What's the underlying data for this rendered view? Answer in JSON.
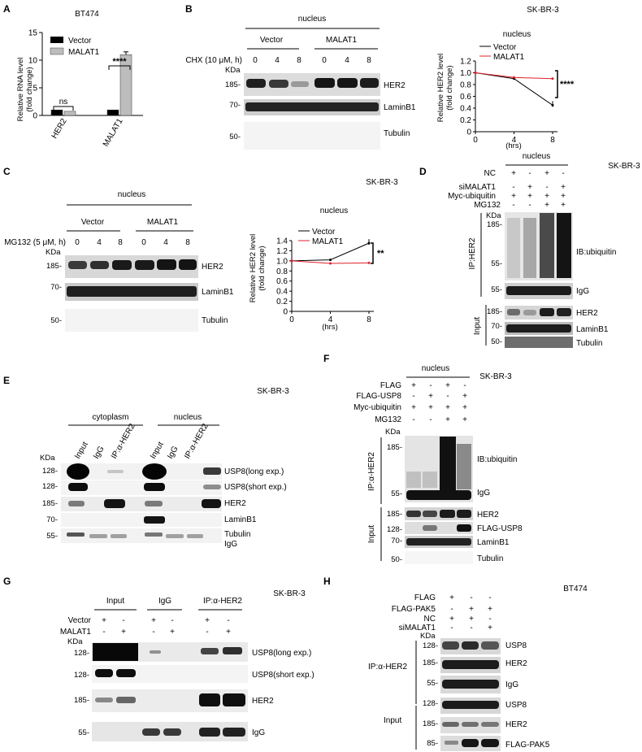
{
  "panels": {
    "A": {
      "letter": "A",
      "cell": "BT474",
      "ylabel1": "Relative RNA level",
      "ylabel2": "(fold change)",
      "legend": [
        "Vector",
        "MALAT1"
      ],
      "sig_ns": "ns",
      "sig_star": "****",
      "xticks": [
        "HER2",
        "MALAT1"
      ]
    },
    "B": {
      "letter": "B",
      "nucleus": "nucleus",
      "vector": "Vector",
      "malat1": "MALAT1",
      "treat": "CHX (10 μM, h)",
      "times": [
        "0",
        "4",
        "8",
        "0",
        "4",
        "8"
      ],
      "kda": "KDa",
      "markers": [
        "185-",
        "70-",
        "50-"
      ],
      "bands": [
        "HER2",
        "LaminB1",
        "Tubulin"
      ],
      "cell": "SK-BR-3",
      "plot_title": "nucleus",
      "ylabel1": "Relative HER2 level",
      "ylabel2": "(fold change)",
      "xlabel": "(hrs)",
      "legend": [
        "Vector",
        "MALAT1"
      ],
      "sig": "****"
    },
    "C": {
      "letter": "C",
      "cell": "SK-BR-3",
      "nucleus": "nucleus",
      "vector": "Vector",
      "malat1": "MALAT1",
      "treat": "MG132 (5 μM, h)",
      "times": [
        "0",
        "4",
        "8",
        "0",
        "4",
        "8"
      ],
      "kda": "KDa",
      "markers": [
        "185-",
        "70-",
        "50-"
      ],
      "bands": [
        "HER2",
        "LaminB1",
        "Tubulin"
      ],
      "plot_title": "nucleus",
      "ylabel1": "Relative HER2 level",
      "ylabel2": "(fold change)",
      "xlabel": "(hrs)",
      "legend": [
        "Vector",
        "MALAT1"
      ],
      "sig": "**"
    },
    "D": {
      "letter": "D",
      "cell": "SK-BR-3",
      "nucleus": "nucleus",
      "rows": [
        {
          "label": "NC",
          "signs": [
            "+",
            "-",
            "+",
            "-"
          ]
        },
        {
          "label": "siMALAT1",
          "signs": [
            "-",
            "+",
            "-",
            "+"
          ]
        },
        {
          "label": "Myc-ubiquitin",
          "signs": [
            "+",
            "+",
            "+",
            "+"
          ]
        },
        {
          "label": "MG132",
          "signs": [
            "-",
            "-",
            "+",
            "+"
          ]
        }
      ],
      "kda": "KDa",
      "ip": "IP:HER2",
      "input": "Input",
      "ib": "IB:ubiquitin",
      "markers_ip": [
        "185-",
        "55-",
        "55-"
      ],
      "markers_in": [
        "185-",
        "70-",
        "50-"
      ],
      "bands": [
        "IgG",
        "HER2",
        "LaminB1",
        "Tubulin"
      ]
    },
    "E": {
      "letter": "E",
      "cell": "SK-BR-3",
      "cytoplasm": "cytoplasm",
      "nucleus": "nucleus",
      "lanes": [
        "Input",
        "IgG",
        "IP:α-HER2",
        "Input",
        "IgG",
        "IP:α-HER2"
      ],
      "kda": "KDa",
      "markers": [
        "128-",
        "128-",
        "185-",
        "70-",
        "55-"
      ],
      "bands": [
        "USP8(long exp.)",
        "USP8(short exp.)",
        "HER2",
        "LaminB1",
        "Tubulin",
        "IgG"
      ]
    },
    "F": {
      "letter": "F",
      "cell": "SK-BR-3",
      "nucleus": "nucleus",
      "rows": [
        {
          "label": "FLAG",
          "signs": [
            "+",
            "-",
            "+",
            "-"
          ]
        },
        {
          "label": "FLAG-USP8",
          "signs": [
            "-",
            "+",
            "-",
            "+"
          ]
        },
        {
          "label": "Myc-ubiquitin",
          "signs": [
            "+",
            "+",
            "+",
            "+"
          ]
        },
        {
          "label": "MG132",
          "signs": [
            "-",
            "-",
            "+",
            "+"
          ]
        }
      ],
      "kda": "KDa",
      "ip": "IP:α-HER2",
      "input": "Input",
      "ib": "IB:ubiquitin",
      "markers_ip": [
        "185-",
        "55-"
      ],
      "markers_in": [
        "185-",
        "128-",
        "70-",
        "50-"
      ],
      "bands": [
        "IgG",
        "HER2",
        "FLAG-USP8",
        "LaminB1",
        "Tubulin"
      ]
    },
    "G": {
      "letter": "G",
      "cell": "SK-BR-3",
      "groups": [
        "Input",
        "IgG",
        "IP:α-HER2"
      ],
      "rows": [
        {
          "label": "Vector",
          "signs": [
            "+",
            "-",
            "+",
            "-",
            "+",
            "-"
          ]
        },
        {
          "label": "MALAT1",
          "signs": [
            "-",
            "+",
            "-",
            "+",
            "-",
            "+"
          ]
        }
      ],
      "kda": "KDa",
      "markers": [
        "128-",
        "128-",
        "185-",
        "55-"
      ],
      "bands": [
        "USP8(long exp.)",
        "USP8(short exp.)",
        "HER2",
        "IgG"
      ]
    },
    "H": {
      "letter": "H",
      "cell": "BT474",
      "rows": [
        {
          "label": "FLAG",
          "signs": [
            "+",
            "-",
            "-"
          ]
        },
        {
          "label": "FLAG-PAK5",
          "signs": [
            "-",
            "+",
            "+"
          ]
        },
        {
          "label": "NC",
          "signs": [
            "+",
            "+",
            "-"
          ]
        },
        {
          "label": "siMALAT1",
          "signs": [
            "-",
            "-",
            "+"
          ]
        }
      ],
      "kda": "KDa",
      "ip": "IP:α-HER2",
      "input": "Input",
      "markers": [
        "128-",
        "185-",
        "55-",
        "128-",
        "185-",
        "85-"
      ],
      "bands": [
        "USP8",
        "HER2",
        "IgG",
        "USP8",
        "HER2",
        "FLAG-PAK5"
      ]
    }
  },
  "chart_data": [
    {
      "type": "bar",
      "panel": "A",
      "categories": [
        "HER2",
        "MALAT1"
      ],
      "series": [
        {
          "name": "Vector",
          "values": [
            1.0,
            1.0
          ]
        },
        {
          "name": "MALAT1",
          "values": [
            0.75,
            11.0
          ]
        }
      ],
      "ylabel": "Relative RNA level (fold change)",
      "ylim": [
        0,
        15
      ],
      "yticks": [
        0,
        5,
        10,
        15
      ]
    },
    {
      "type": "line",
      "panel": "B",
      "title": "nucleus",
      "x": [
        0,
        4,
        8
      ],
      "series": [
        {
          "name": "Vector",
          "values": [
            1.0,
            0.9,
            0.45
          ],
          "color": "#000000"
        },
        {
          "name": "MALAT1",
          "values": [
            1.0,
            0.92,
            0.9
          ],
          "color": "#e0202a"
        }
      ],
      "xlabel": "(hrs)",
      "ylabel": "Relative HER2 level (fold change)",
      "ylim": [
        0,
        1.2
      ],
      "yticks": [
        0,
        0.2,
        0.4,
        0.6,
        0.8,
        1.0,
        1.2
      ],
      "yticklabels": [
        "0",
        "0.2",
        "0.4",
        "0.6",
        "0.8",
        "1.0",
        "1.2"
      ],
      "xticks": [
        0,
        4,
        8
      ]
    },
    {
      "type": "line",
      "panel": "C",
      "title": "nucleus",
      "x": [
        0,
        4,
        8
      ],
      "series": [
        {
          "name": "Vector",
          "values": [
            1.0,
            1.02,
            1.35
          ],
          "color": "#000000"
        },
        {
          "name": "MALAT1",
          "values": [
            1.0,
            0.95,
            0.96
          ],
          "color": "#e0202a"
        }
      ],
      "xlabel": "(hrs)",
      "ylabel": "Relative HER2 level (fold change)",
      "ylim": [
        0,
        1.4
      ],
      "yticks": [
        0,
        0.2,
        0.4,
        0.6,
        0.8,
        1.0,
        1.2,
        1.4
      ],
      "yticklabels": [
        "0",
        "0.2",
        "0.4",
        "0.6",
        "0.8",
        "1.0",
        "1.2",
        "1.4"
      ],
      "xticks": [
        0,
        4,
        8
      ]
    }
  ]
}
